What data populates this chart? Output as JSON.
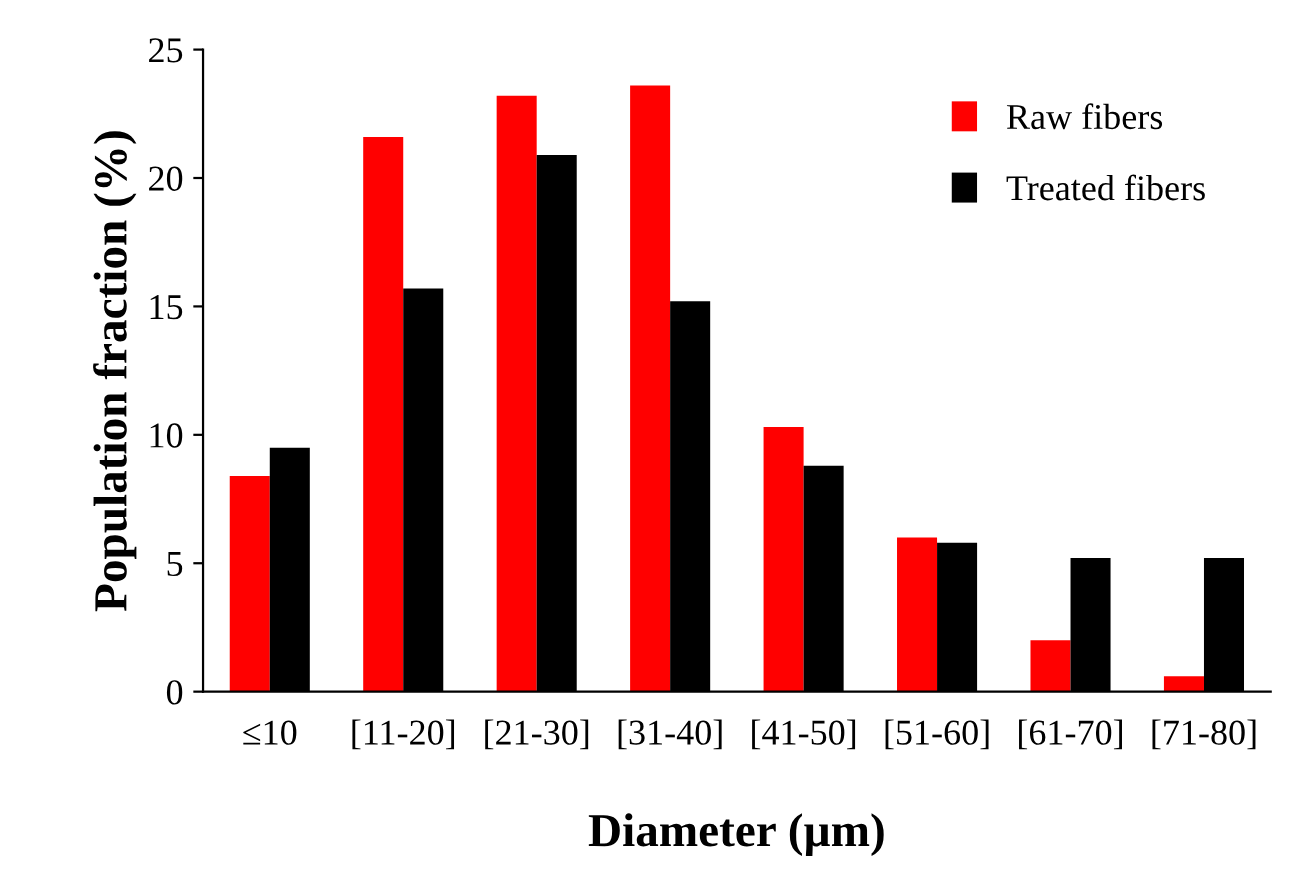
{
  "chart_data": {
    "type": "bar",
    "xlabel": "Diameter (µm)",
    "ylabel": "Population fraction (%)",
    "categories": [
      "≤10",
      "[11-20]",
      "[21-30]",
      "[31-40]",
      "[41-50]",
      "[51-60]",
      "[61-70]",
      "[71-80]"
    ],
    "series": [
      {
        "name": "Raw fibers",
        "color": "#ff0000",
        "values": [
          8.4,
          21.6,
          23.2,
          23.6,
          10.3,
          6.0,
          2.0,
          0.6
        ]
      },
      {
        "name": "Treated fibers",
        "color": "#000000",
        "values": [
          9.5,
          15.7,
          20.9,
          15.2,
          8.8,
          5.8,
          5.2,
          5.2
        ]
      }
    ],
    "ylim": [
      0,
      25
    ],
    "yticks": [
      0,
      5,
      10,
      15,
      20,
      25
    ],
    "grid": false,
    "legend": "top right"
  }
}
